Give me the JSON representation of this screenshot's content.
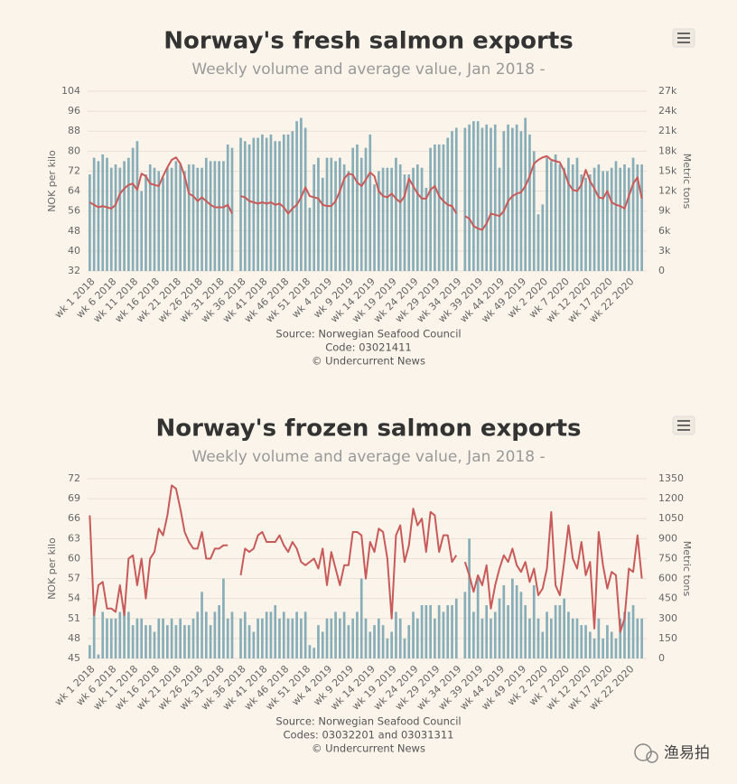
{
  "chart_data": [
    {
      "type": "combo",
      "title": "Norway's fresh salmon exports",
      "subtitle": "Weekly volume and average value, Jan 2018 -",
      "y_label": "NOK per kilo",
      "y2_label": "Metric tons",
      "source": [
        "Source: Norwegian Seafood Council",
        "Code: 03021411",
        "© Undercurrent News"
      ],
      "categories": [
        "wk 1 2018",
        null,
        null,
        null,
        null,
        "wk 6 2018",
        null,
        null,
        null,
        null,
        "wk 11 2018",
        null,
        null,
        null,
        null,
        "wk 16 2018",
        null,
        null,
        null,
        null,
        "wk 21 2018",
        null,
        null,
        null,
        null,
        "wk 26 2018",
        null,
        null,
        null,
        null,
        "wk 31 2018",
        null,
        null,
        null,
        null,
        "wk 36 2018",
        null,
        null,
        null,
        null,
        "wk 41 2018",
        null,
        null,
        null,
        null,
        "wk 46 2018",
        null,
        null,
        null,
        null,
        "wk 51 2018",
        null,
        null,
        null,
        null,
        "wk 4 2019",
        null,
        null,
        null,
        null,
        "wk 9 2019",
        null,
        null,
        null,
        null,
        "wk 14 2019",
        null,
        null,
        null,
        null,
        "wk 19 2019",
        null,
        null,
        null,
        null,
        "wk 24 2019",
        null,
        null,
        null,
        null,
        "wk 29 2019",
        null,
        null,
        null,
        null,
        "wk 34 2019",
        null,
        null,
        null,
        null,
        "wk 39 2019",
        null,
        null,
        null,
        null,
        "wk 44 2019",
        null,
        null,
        null,
        null,
        "wk 49 2019",
        null,
        null,
        null,
        null,
        "wk 2 2020",
        null,
        null,
        null,
        null,
        "wk 7 2020",
        null,
        null,
        null,
        null,
        "wk 12 2020",
        null,
        null,
        null,
        null,
        "wk 17 2020",
        null,
        null,
        null,
        null,
        "wk 22 2020",
        null,
        null,
        null
      ],
      "ylim": [
        32,
        104
      ],
      "yticks": [
        32,
        40,
        48,
        56,
        64,
        72,
        80,
        88,
        96,
        104
      ],
      "y2lim": [
        0,
        27000
      ],
      "y2ticks": [
        0,
        {
          "value": 3000,
          "label": "3k"
        },
        {
          "value": 6000,
          "label": "6k"
        },
        {
          "value": 9000,
          "label": "9k"
        },
        {
          "value": 12000,
          "label": "12k"
        },
        {
          "value": 15000,
          "label": "15k"
        },
        {
          "value": 18000,
          "label": "18k"
        },
        {
          "value": 21000,
          "label": "21k"
        },
        {
          "value": 24000,
          "label": "24k"
        },
        {
          "value": 27000,
          "label": "27k"
        }
      ],
      "grid": true,
      "series": [
        {
          "type": "bar",
          "axis": "y2",
          "color": "#86adb8",
          "values": [
            14500,
            17000,
            16500,
            17500,
            17000,
            15500,
            16000,
            15500,
            16500,
            17000,
            18500,
            19500,
            12000,
            14500,
            16000,
            15500,
            15000,
            14000,
            15500,
            15500,
            16500,
            16000,
            15000,
            16000,
            16000,
            15500,
            15500,
            17000,
            16500,
            16500,
            16500,
            16500,
            19000,
            18500,
            null,
            20000,
            19500,
            19000,
            20000,
            20000,
            20500,
            20000,
            20500,
            19500,
            19500,
            20500,
            20500,
            21000,
            22500,
            23000,
            21500,
            9500,
            16000,
            17000,
            14000,
            17000,
            17000,
            16500,
            17000,
            16000,
            15000,
            18500,
            19000,
            17000,
            18500,
            20500,
            13000,
            15000,
            15500,
            15500,
            15500,
            17000,
            16000,
            14500,
            14500,
            15500,
            16000,
            15500,
            12500,
            18500,
            19000,
            19000,
            19000,
            20000,
            21000,
            21500,
            null,
            21500,
            22000,
            22500,
            22500,
            21500,
            22000,
            21500,
            22000,
            15500,
            21000,
            22000,
            21500,
            22000,
            21000,
            23000,
            20500,
            18000,
            8500,
            10000,
            17000,
            16500,
            17500,
            16000,
            15500,
            17000,
            16000,
            17000,
            14500,
            14000,
            14500,
            15500,
            16000,
            15000,
            15000,
            15500,
            16500,
            15500,
            16000,
            15500,
            17000,
            16000,
            16000
          ]
        },
        {
          "type": "line",
          "color": "#c85a5a",
          "values": [
            59.5,
            58.5,
            57.5,
            58,
            57.5,
            57,
            58.5,
            63,
            65,
            66.5,
            67,
            64.5,
            71,
            70,
            67,
            66.5,
            66,
            70,
            73.5,
            76.5,
            77.5,
            75,
            70,
            63,
            62,
            60,
            61.5,
            60,
            58.5,
            57.5,
            57.5,
            57.5,
            58.5,
            55,
            null,
            62,
            61.5,
            60,
            59.5,
            59,
            59.5,
            59,
            59.5,
            58.5,
            59,
            57.5,
            55,
            57,
            58.5,
            61.5,
            65.5,
            62,
            61.5,
            61,
            58.5,
            58,
            58,
            60,
            64,
            69,
            71,
            70.5,
            67.5,
            66,
            68.5,
            71.5,
            70,
            64,
            62,
            61.5,
            63,
            61,
            59.5,
            62,
            69,
            66,
            63,
            61,
            61,
            64.5,
            66,
            62,
            60,
            58.5,
            58,
            55,
            null,
            54,
            53,
            50,
            49,
            48.5,
            51,
            55,
            54.5,
            54,
            56,
            60,
            62,
            63,
            63.5,
            66,
            70,
            75,
            76.5,
            77.5,
            78,
            76.5,
            76,
            75.5,
            72,
            67,
            64.5,
            64,
            66.5,
            72.5,
            68,
            65,
            61.5,
            61,
            64,
            59.5,
            58.5,
            58,
            57,
            62,
            67,
            69.5,
            61
          ]
        }
      ]
    },
    {
      "type": "combo",
      "title": "Norway's frozen salmon exports",
      "subtitle": "Weekly volume and average value, Jan 2018 -",
      "y_label": "NOK per kilo",
      "y2_label": "Metric tons",
      "source": [
        "Source: Norwegian Seafood Council",
        "Codes: 03032201 and 03031311",
        "© Undercurrent News"
      ],
      "categories": [
        "wk 1 2018",
        null,
        null,
        null,
        null,
        "wk 6 2018",
        null,
        null,
        null,
        null,
        "wk 11 2018",
        null,
        null,
        null,
        null,
        "wk 16 2018",
        null,
        null,
        null,
        null,
        "wk 21 2018",
        null,
        null,
        null,
        null,
        "wk 26 2018",
        null,
        null,
        null,
        null,
        "wk 31 2018",
        null,
        null,
        null,
        null,
        "wk 36 2018",
        null,
        null,
        null,
        null,
        "wk 41 2018",
        null,
        null,
        null,
        null,
        "wk 46 2018",
        null,
        null,
        null,
        null,
        "wk 51 2018",
        null,
        null,
        null,
        null,
        "wk 4 2019",
        null,
        null,
        null,
        null,
        "wk 9 2019",
        null,
        null,
        null,
        null,
        "wk 14 2019",
        null,
        null,
        null,
        null,
        "wk 19 2019",
        null,
        null,
        null,
        null,
        "wk 24 2019",
        null,
        null,
        null,
        null,
        "wk 29 2019",
        null,
        null,
        null,
        null,
        "wk 34 2019",
        null,
        null,
        null,
        null,
        "wk 39 2019",
        null,
        null,
        null,
        null,
        "wk 44 2019",
        null,
        null,
        null,
        null,
        "wk 49 2019",
        null,
        null,
        null,
        null,
        "wk 2 2020",
        null,
        null,
        null,
        null,
        "wk 7 2020",
        null,
        null,
        null,
        null,
        "wk 12 2020",
        null,
        null,
        null,
        null,
        "wk 17 2020",
        null,
        null,
        null,
        null,
        "wk 22 2020",
        null,
        null,
        null
      ],
      "ylim": [
        45,
        72
      ],
      "yticks": [
        45,
        48,
        51,
        54,
        57,
        60,
        63,
        66,
        69,
        72
      ],
      "y2lim": [
        0,
        1350
      ],
      "y2ticks": [
        0,
        150,
        300,
        450,
        600,
        750,
        900,
        1050,
        1200,
        1350
      ],
      "grid": true,
      "series": [
        {
          "type": "bar",
          "axis": "y2",
          "color": "#86adb8",
          "values": [
            100,
            350,
            30,
            350,
            300,
            300,
            300,
            350,
            400,
            350,
            250,
            300,
            300,
            250,
            250,
            200,
            300,
            300,
            250,
            300,
            250,
            300,
            250,
            250,
            300,
            350,
            500,
            350,
            250,
            350,
            400,
            600,
            300,
            350,
            null,
            300,
            350,
            250,
            200,
            300,
            300,
            350,
            350,
            400,
            300,
            350,
            300,
            300,
            350,
            300,
            350,
            100,
            80,
            250,
            200,
            300,
            300,
            350,
            300,
            350,
            250,
            300,
            350,
            600,
            300,
            200,
            250,
            300,
            250,
            150,
            200,
            350,
            300,
            150,
            250,
            350,
            300,
            400,
            400,
            400,
            300,
            400,
            350,
            400,
            400,
            450,
            null,
            500,
            900,
            350,
            600,
            300,
            400,
            300,
            350,
            450,
            550,
            400,
            600,
            550,
            500,
            400,
            300,
            550,
            300,
            200,
            350,
            300,
            400,
            400,
            450,
            350,
            300,
            300,
            250,
            250,
            200,
            150,
            300,
            150,
            250,
            200,
            150,
            300,
            350,
            350,
            400,
            300,
            300
          ]
        },
        {
          "type": "line",
          "color": "#c85a5a",
          "values": [
            66.5,
            51.5,
            56,
            56.5,
            52.5,
            52.5,
            52,
            56,
            51.5,
            60,
            60.5,
            56,
            60,
            54,
            60,
            61,
            64.5,
            63.5,
            66.5,
            71,
            70.5,
            67.5,
            64,
            62.5,
            61.5,
            61.5,
            64,
            60,
            60,
            61.5,
            61.5,
            62,
            62,
            null,
            null,
            57.5,
            61.5,
            61,
            61.5,
            63.5,
            64,
            62.5,
            62.5,
            62.5,
            63.5,
            62,
            61,
            62.5,
            61.5,
            59.5,
            59,
            59.5,
            60,
            58.5,
            61.5,
            56,
            61,
            58.5,
            56,
            59,
            59,
            64,
            64,
            63.5,
            57,
            62.5,
            61,
            64.5,
            64,
            60,
            51,
            63.5,
            65,
            59.5,
            62,
            67.5,
            65,
            66,
            61,
            67,
            66.5,
            61,
            63.5,
            63.5,
            59.5,
            60.5,
            null,
            59.5,
            57.5,
            55,
            57.5,
            56,
            59,
            52.5,
            56,
            58.5,
            60.5,
            59.5,
            61.5,
            59,
            58,
            59.5,
            56.5,
            58.5,
            54.5,
            55.5,
            58.5,
            67,
            56,
            54.5,
            59.5,
            65,
            60,
            58.5,
            62.5,
            57.5,
            59.5,
            49.5,
            64,
            59,
            55.5,
            58,
            57.5,
            49,
            51,
            58.5,
            58,
            63.5,
            57
          ]
        }
      ]
    }
  ],
  "watermark": "渔易拍"
}
